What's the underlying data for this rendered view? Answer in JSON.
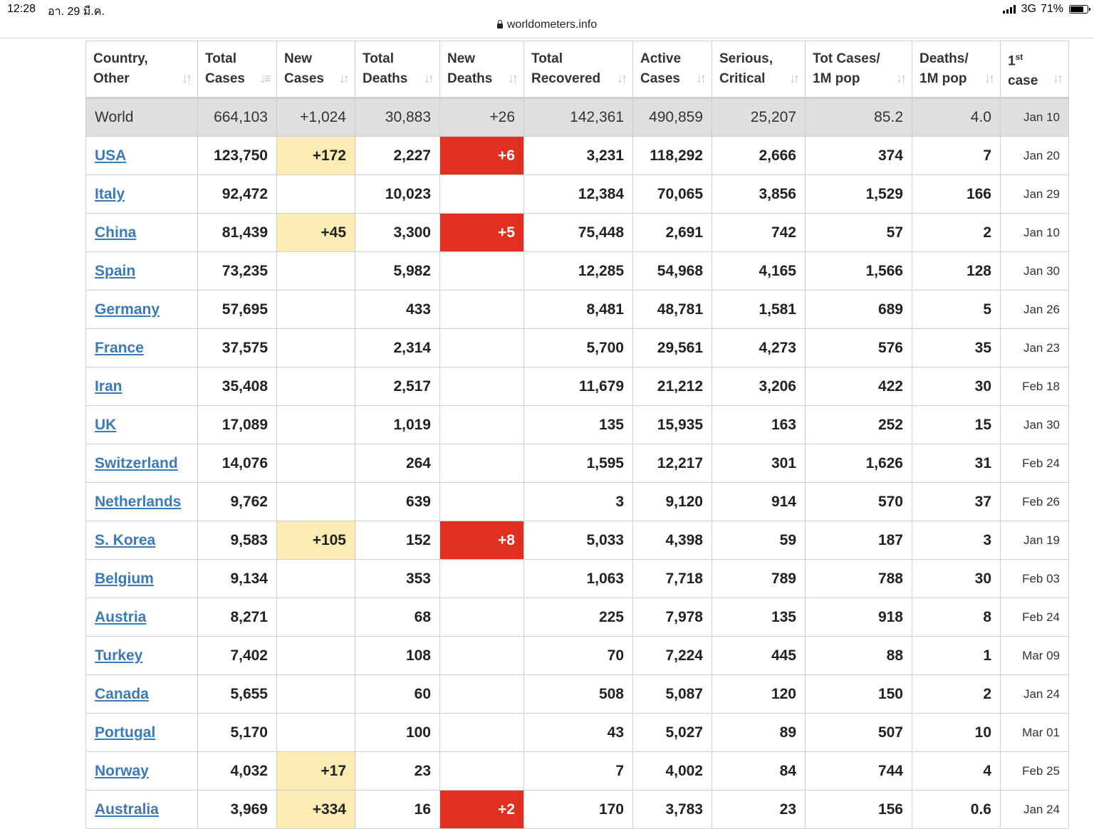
{
  "status_bar": {
    "time": "12:28",
    "date": "อา. 29 มี.ค.",
    "network": "3G",
    "battery": "71%"
  },
  "browser": {
    "url": "worldometers.info"
  },
  "table": {
    "headers": [
      {
        "line1": "Country,",
        "line2": "Other"
      },
      {
        "line1": "Total",
        "line2": "Cases"
      },
      {
        "line1": "New",
        "line2": "Cases"
      },
      {
        "line1": "Total",
        "line2": "Deaths"
      },
      {
        "line1": "New",
        "line2": "Deaths"
      },
      {
        "line1": "Total",
        "line2": "Recovered"
      },
      {
        "line1": "Active",
        "line2": "Cases"
      },
      {
        "line1": "Serious,",
        "line2": "Critical"
      },
      {
        "line1": "Tot Cases/",
        "line2": "1M pop"
      },
      {
        "line1": "Deaths/",
        "line2": "1M pop"
      },
      {
        "line1": "1",
        "sup": "st",
        "line2": "case"
      }
    ],
    "world": {
      "country": "World",
      "total_cases": "664,103",
      "new_cases": "+1,024",
      "total_deaths": "30,883",
      "new_deaths": "+26",
      "total_recovered": "142,361",
      "active_cases": "490,859",
      "serious_critical": "25,207",
      "cases_per_1m": "85.2",
      "deaths_per_1m": "4.0",
      "first_case": "Jan 10"
    },
    "rows": [
      {
        "country": "USA",
        "total_cases": "123,750",
        "new_cases": "+172",
        "total_deaths": "2,227",
        "new_deaths": "+6",
        "total_recovered": "3,231",
        "active_cases": "118,292",
        "serious_critical": "2,666",
        "cases_per_1m": "374",
        "deaths_per_1m": "7",
        "first_case": "Jan 20"
      },
      {
        "country": "Italy",
        "total_cases": "92,472",
        "new_cases": "",
        "total_deaths": "10,023",
        "new_deaths": "",
        "total_recovered": "12,384",
        "active_cases": "70,065",
        "serious_critical": "3,856",
        "cases_per_1m": "1,529",
        "deaths_per_1m": "166",
        "first_case": "Jan 29"
      },
      {
        "country": "China",
        "total_cases": "81,439",
        "new_cases": "+45",
        "total_deaths": "3,300",
        "new_deaths": "+5",
        "total_recovered": "75,448",
        "active_cases": "2,691",
        "serious_critical": "742",
        "cases_per_1m": "57",
        "deaths_per_1m": "2",
        "first_case": "Jan 10"
      },
      {
        "country": "Spain",
        "total_cases": "73,235",
        "new_cases": "",
        "total_deaths": "5,982",
        "new_deaths": "",
        "total_recovered": "12,285",
        "active_cases": "54,968",
        "serious_critical": "4,165",
        "cases_per_1m": "1,566",
        "deaths_per_1m": "128",
        "first_case": "Jan 30"
      },
      {
        "country": "Germany",
        "total_cases": "57,695",
        "new_cases": "",
        "total_deaths": "433",
        "new_deaths": "",
        "total_recovered": "8,481",
        "active_cases": "48,781",
        "serious_critical": "1,581",
        "cases_per_1m": "689",
        "deaths_per_1m": "5",
        "first_case": "Jan 26"
      },
      {
        "country": "France",
        "total_cases": "37,575",
        "new_cases": "",
        "total_deaths": "2,314",
        "new_deaths": "",
        "total_recovered": "5,700",
        "active_cases": "29,561",
        "serious_critical": "4,273",
        "cases_per_1m": "576",
        "deaths_per_1m": "35",
        "first_case": "Jan 23"
      },
      {
        "country": "Iran",
        "total_cases": "35,408",
        "new_cases": "",
        "total_deaths": "2,517",
        "new_deaths": "",
        "total_recovered": "11,679",
        "active_cases": "21,212",
        "serious_critical": "3,206",
        "cases_per_1m": "422",
        "deaths_per_1m": "30",
        "first_case": "Feb 18"
      },
      {
        "country": "UK",
        "total_cases": "17,089",
        "new_cases": "",
        "total_deaths": "1,019",
        "new_deaths": "",
        "total_recovered": "135",
        "active_cases": "15,935",
        "serious_critical": "163",
        "cases_per_1m": "252",
        "deaths_per_1m": "15",
        "first_case": "Jan 30"
      },
      {
        "country": "Switzerland",
        "total_cases": "14,076",
        "new_cases": "",
        "total_deaths": "264",
        "new_deaths": "",
        "total_recovered": "1,595",
        "active_cases": "12,217",
        "serious_critical": "301",
        "cases_per_1m": "1,626",
        "deaths_per_1m": "31",
        "first_case": "Feb 24"
      },
      {
        "country": "Netherlands",
        "total_cases": "9,762",
        "new_cases": "",
        "total_deaths": "639",
        "new_deaths": "",
        "total_recovered": "3",
        "active_cases": "9,120",
        "serious_critical": "914",
        "cases_per_1m": "570",
        "deaths_per_1m": "37",
        "first_case": "Feb 26"
      },
      {
        "country": "S. Korea",
        "total_cases": "9,583",
        "new_cases": "+105",
        "total_deaths": "152",
        "new_deaths": "+8",
        "total_recovered": "5,033",
        "active_cases": "4,398",
        "serious_critical": "59",
        "cases_per_1m": "187",
        "deaths_per_1m": "3",
        "first_case": "Jan 19"
      },
      {
        "country": "Belgium",
        "total_cases": "9,134",
        "new_cases": "",
        "total_deaths": "353",
        "new_deaths": "",
        "total_recovered": "1,063",
        "active_cases": "7,718",
        "serious_critical": "789",
        "cases_per_1m": "788",
        "deaths_per_1m": "30",
        "first_case": "Feb 03"
      },
      {
        "country": "Austria",
        "total_cases": "8,271",
        "new_cases": "",
        "total_deaths": "68",
        "new_deaths": "",
        "total_recovered": "225",
        "active_cases": "7,978",
        "serious_critical": "135",
        "cases_per_1m": "918",
        "deaths_per_1m": "8",
        "first_case": "Feb 24"
      },
      {
        "country": "Turkey",
        "total_cases": "7,402",
        "new_cases": "",
        "total_deaths": "108",
        "new_deaths": "",
        "total_recovered": "70",
        "active_cases": "7,224",
        "serious_critical": "445",
        "cases_per_1m": "88",
        "deaths_per_1m": "1",
        "first_case": "Mar 09"
      },
      {
        "country": "Canada",
        "total_cases": "5,655",
        "new_cases": "",
        "total_deaths": "60",
        "new_deaths": "",
        "total_recovered": "508",
        "active_cases": "5,087",
        "serious_critical": "120",
        "cases_per_1m": "150",
        "deaths_per_1m": "2",
        "first_case": "Jan 24"
      },
      {
        "country": "Portugal",
        "total_cases": "5,170",
        "new_cases": "",
        "total_deaths": "100",
        "new_deaths": "",
        "total_recovered": "43",
        "active_cases": "5,027",
        "serious_critical": "89",
        "cases_per_1m": "507",
        "deaths_per_1m": "10",
        "first_case": "Mar 01"
      },
      {
        "country": "Norway",
        "total_cases": "4,032",
        "new_cases": "+17",
        "total_deaths": "23",
        "new_deaths": "",
        "total_recovered": "7",
        "active_cases": "4,002",
        "serious_critical": "84",
        "cases_per_1m": "744",
        "deaths_per_1m": "4",
        "first_case": "Feb 25"
      },
      {
        "country": "Australia",
        "total_cases": "3,969",
        "new_cases": "+334",
        "total_deaths": "16",
        "new_deaths": "+2",
        "total_recovered": "170",
        "active_cases": "3,783",
        "serious_critical": "23",
        "cases_per_1m": "156",
        "deaths_per_1m": "0.6",
        "first_case": "Jan 24"
      }
    ]
  },
  "colors": {
    "link": "#3a7ab8",
    "new_cases_highlight": "#fbecb4",
    "new_deaths_highlight": "#e23020",
    "world_row_bg": "#dfdfdf"
  }
}
